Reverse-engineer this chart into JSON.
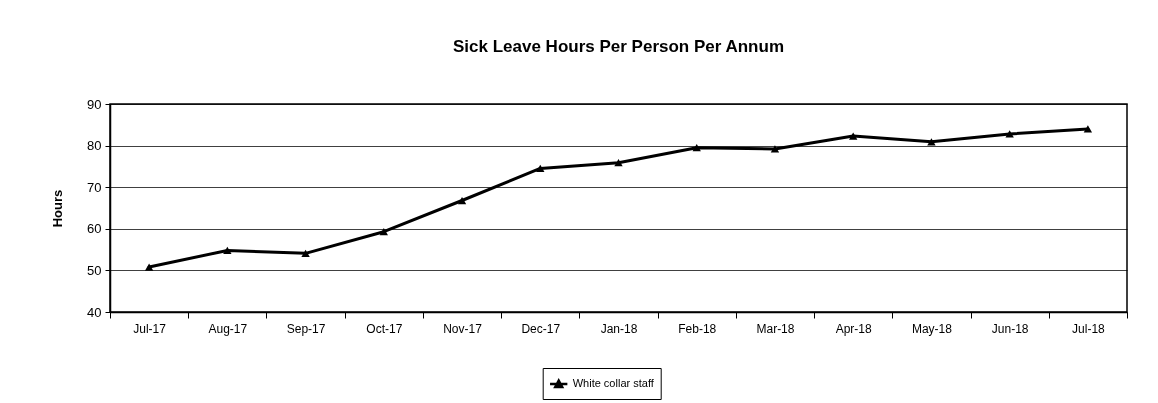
{
  "chart_data": {
    "type": "line",
    "title": "Sick Leave Hours Per Person Per Annum",
    "ylabel": "Hours",
    "categories": [
      "Jul-17",
      "Aug-17",
      "Sep-17",
      "Oct-17",
      "Nov-17",
      "Dec-17",
      "Jan-18",
      "Feb-18",
      "Mar-18",
      "Apr-18",
      "May-18",
      "Jun-18",
      "Jul-18"
    ],
    "series": [
      {
        "name": "White collar staff",
        "color": "#000000",
        "values": [
          50.8,
          54.8,
          54.1,
          59.3,
          66.8,
          74.5,
          75.9,
          79.5,
          79.2,
          82.3,
          80.9,
          82.8,
          84.0
        ]
      }
    ],
    "ylim": [
      40,
      90
    ],
    "yticks": [
      40,
      50,
      60,
      70,
      80,
      90
    ],
    "grid": "y",
    "legend": "bottom",
    "marker": "triangle",
    "line_style": "solid"
  }
}
